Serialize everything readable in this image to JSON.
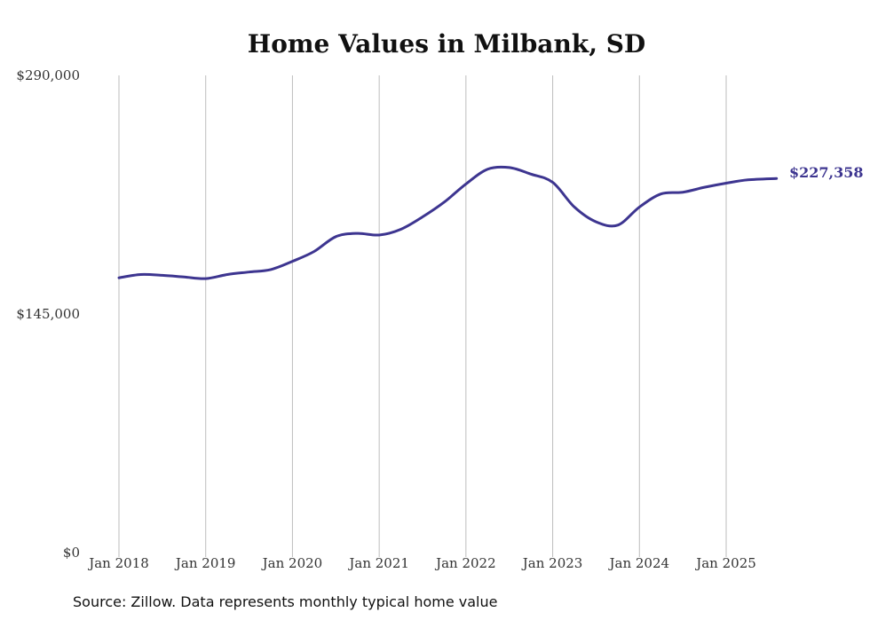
{
  "chart_data": {
    "type": "line",
    "title": "Home Values in Milbank, SD",
    "xlabel": "",
    "ylabel": "",
    "source": "Source: Zillow. Data represents monthly typical home value",
    "ylim": [
      0,
      290000
    ],
    "yticks": [
      {
        "value": 0,
        "label": "$0"
      },
      {
        "value": 145000,
        "label": "$145,000"
      },
      {
        "value": 290000,
        "label": "$290,000"
      }
    ],
    "xticks": [
      {
        "value": 2018.0,
        "label": "Jan 2018"
      },
      {
        "value": 2019.0,
        "label": "Jan 2019"
      },
      {
        "value": 2020.0,
        "label": "Jan 2020"
      },
      {
        "value": 2021.0,
        "label": "Jan 2021"
      },
      {
        "value": 2022.0,
        "label": "Jan 2022"
      },
      {
        "value": 2023.0,
        "label": "Jan 2023"
      },
      {
        "value": 2024.0,
        "label": "Jan 2024"
      },
      {
        "value": 2025.0,
        "label": "Jan 2025"
      }
    ],
    "xlim": [
      2017.0,
      2026.0
    ],
    "grid": "vertical",
    "line_color": "#3d3590",
    "end_label": "$227,358",
    "series": [
      {
        "name": "Typical home value",
        "x": [
          2018.0,
          2018.25,
          2018.5,
          2018.75,
          2019.0,
          2019.25,
          2019.5,
          2019.75,
          2020.0,
          2020.25,
          2020.5,
          2020.75,
          2021.0,
          2021.25,
          2021.5,
          2021.75,
          2022.0,
          2022.25,
          2022.5,
          2022.75,
          2023.0,
          2023.25,
          2023.5,
          2023.75,
          2024.0,
          2024.25,
          2024.5,
          2024.75,
          2025.0,
          2025.25,
          2025.58
        ],
        "values": [
          167000,
          169000,
          168500,
          167500,
          166500,
          169000,
          170500,
          172000,
          177000,
          183000,
          192000,
          194000,
          193000,
          196500,
          204000,
          213000,
          224000,
          233000,
          234000,
          230000,
          225000,
          210000,
          201000,
          199000,
          210000,
          218000,
          219000,
          222000,
          224500,
          226500,
          227358
        ]
      }
    ]
  }
}
